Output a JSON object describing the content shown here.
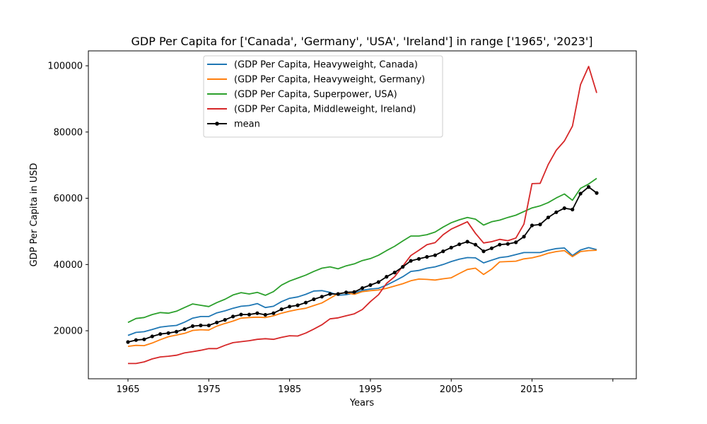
{
  "chart_data": {
    "type": "line",
    "title": "GDP Per Capita for ['Canada', 'Germany', 'USA', 'Ireland'] in range ['1965', '2023']",
    "xlabel": "Years",
    "ylabel": "GDP Per Capita in USD",
    "xlim": [
      1960.1,
      2027.9
    ],
    "ylim": [
      5500,
      104500
    ],
    "xticks": [
      1965,
      1975,
      1985,
      1995,
      2005,
      2015,
      2025
    ],
    "xtick_labels": [
      "1965",
      "1975",
      "1985",
      "1995",
      "2005",
      "2015",
      ""
    ],
    "yticks": [
      20000,
      40000,
      60000,
      80000,
      100000
    ],
    "ytick_labels": [
      "20000",
      "40000",
      "60000",
      "80000",
      "100000"
    ],
    "grid": false,
    "legend_position": "top-center",
    "x": [
      1965,
      1966,
      1967,
      1968,
      1969,
      1970,
      1971,
      1972,
      1973,
      1974,
      1975,
      1976,
      1977,
      1978,
      1979,
      1980,
      1981,
      1982,
      1983,
      1984,
      1985,
      1986,
      1987,
      1988,
      1989,
      1990,
      1991,
      1992,
      1993,
      1994,
      1995,
      1996,
      1997,
      1998,
      1999,
      2000,
      2001,
      2002,
      2003,
      2004,
      2005,
      2006,
      2007,
      2008,
      2009,
      2010,
      2011,
      2012,
      2013,
      2014,
      2015,
      2016,
      2017,
      2018,
      2019,
      2020,
      2021,
      2022,
      2023
    ],
    "series": [
      {
        "name": "(GDP Per Capita, Heavyweight, Canada)",
        "color": "#1f77b4",
        "marker": false,
        "values": [
          18600,
          19500,
          19700,
          20400,
          21100,
          21400,
          21600,
          22600,
          23800,
          24300,
          24300,
          25400,
          26000,
          26800,
          27400,
          27600,
          28200,
          27000,
          27400,
          28800,
          29800,
          30200,
          31000,
          32000,
          32100,
          31600,
          30700,
          30900,
          31400,
          32200,
          32600,
          32800,
          33800,
          35000,
          36300,
          37900,
          38200,
          38900,
          39300,
          40000,
          40900,
          41600,
          42100,
          42000,
          40500,
          41300,
          42100,
          42400,
          43000,
          43600,
          43600,
          43600,
          44300,
          44800,
          45000,
          42700,
          44400,
          45100,
          44500
        ]
      },
      {
        "name": "(GDP Per Capita, Heavyweight, Germany)",
        "color": "#ff7f0e",
        "marker": false,
        "values": [
          15300,
          15600,
          15500,
          16300,
          17300,
          18200,
          18700,
          19200,
          20100,
          20300,
          20200,
          21400,
          22200,
          22900,
          23800,
          24000,
          24100,
          24000,
          24500,
          25300,
          25900,
          26400,
          26800,
          27600,
          28400,
          29800,
          31200,
          31500,
          31000,
          31800,
          32100,
          32300,
          32800,
          33500,
          34200,
          35100,
          35600,
          35500,
          35300,
          35700,
          36000,
          37300,
          38500,
          38900,
          37000,
          38600,
          40800,
          40900,
          41000,
          41700,
          42000,
          42600,
          43400,
          43900,
          44200,
          42400,
          43900,
          44200,
          44300
        ]
      },
      {
        "name": "(GDP Per Capita, Superpower, USA)",
        "color": "#2ca02c",
        "marker": false,
        "values": [
          22500,
          23700,
          24000,
          24900,
          25500,
          25300,
          25900,
          27000,
          28100,
          27700,
          27300,
          28500,
          29500,
          30800,
          31500,
          31100,
          31600,
          30700,
          31800,
          33800,
          35000,
          35900,
          36800,
          37900,
          38900,
          39300,
          38700,
          39600,
          40200,
          41200,
          41800,
          42800,
          44200,
          45500,
          47100,
          48600,
          48600,
          49000,
          49800,
          51300,
          52600,
          53500,
          54200,
          53700,
          51900,
          52900,
          53400,
          54200,
          54900,
          56000,
          57100,
          57700,
          58700,
          60100,
          61300,
          59400,
          63000,
          64300,
          66000
        ]
      },
      {
        "name": "(GDP Per Capita, Middleweight, Ireland)",
        "color": "#d62728",
        "marker": false,
        "values": [
          10100,
          10100,
          10600,
          11500,
          12100,
          12300,
          12600,
          13300,
          13700,
          14100,
          14600,
          14600,
          15600,
          16400,
          16700,
          17000,
          17400,
          17600,
          17400,
          18000,
          18500,
          18400,
          19300,
          20500,
          21800,
          23600,
          23900,
          24500,
          25100,
          26400,
          28800,
          30900,
          34300,
          36300,
          39500,
          42700,
          44300,
          46000,
          46600,
          49000,
          50700,
          51800,
          52900,
          49400,
          46500,
          46900,
          47600,
          47200,
          48000,
          52200,
          64400,
          64500,
          70200,
          74500,
          77300,
          81800,
          94300,
          99800,
          91800
        ]
      },
      {
        "name": "mean",
        "color": "#000000",
        "marker": true,
        "values": [
          16600,
          17200,
          17400,
          18300,
          19000,
          19300,
          19700,
          20500,
          21400,
          21600,
          21600,
          22500,
          23300,
          24300,
          24900,
          24900,
          25300,
          24800,
          25300,
          26500,
          27300,
          27700,
          28500,
          29500,
          30300,
          31100,
          31100,
          31600,
          31700,
          32900,
          33800,
          34700,
          36300,
          37600,
          39300,
          41100,
          41700,
          42300,
          42800,
          44000,
          45100,
          46100,
          46900,
          46000,
          44000,
          44900,
          46000,
          46200,
          46700,
          48400,
          51800,
          52100,
          54200,
          55800,
          57000,
          56600,
          61400,
          63400,
          61600
        ]
      }
    ]
  }
}
